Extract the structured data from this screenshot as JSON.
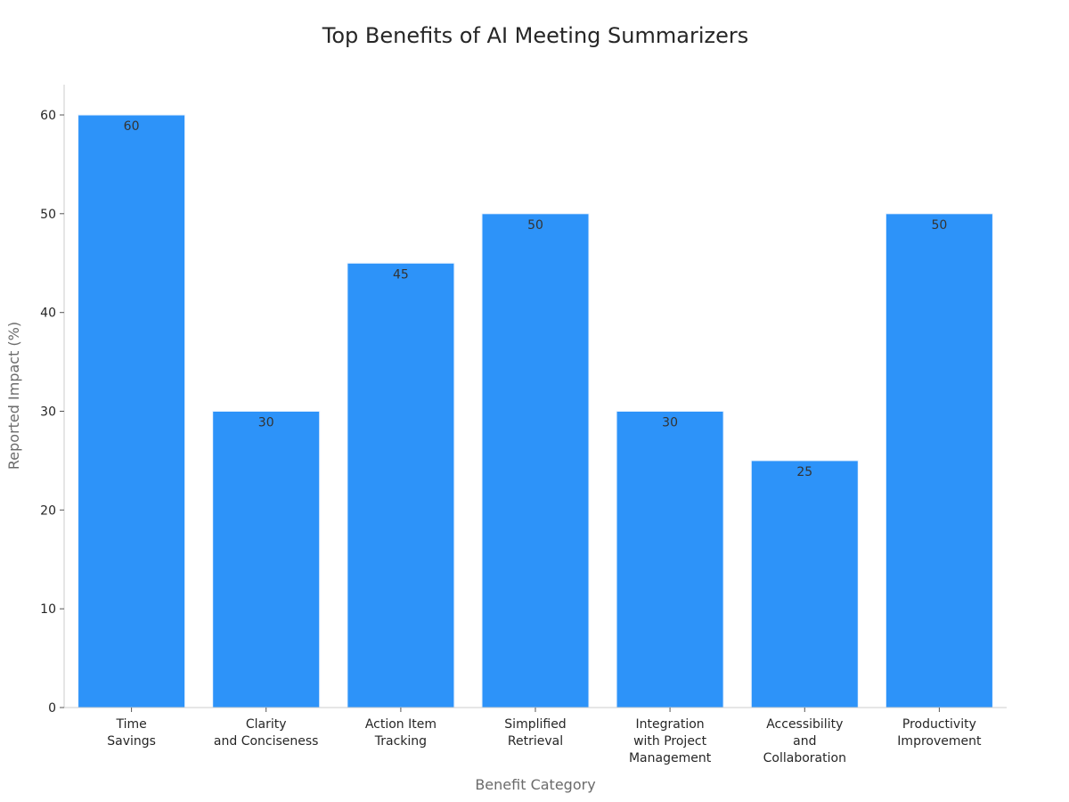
{
  "chart_data": {
    "type": "bar",
    "title": "Top Benefits of AI Meeting Summarizers",
    "xlabel": "Benefit Category",
    "ylabel": "Reported Impact (%)",
    "categories": [
      [
        "Time",
        "Savings"
      ],
      [
        "Clarity",
        "and Conciseness"
      ],
      [
        "Action Item",
        "Tracking"
      ],
      [
        "Simplified",
        "Retrieval"
      ],
      [
        "Integration",
        "with Project",
        "Management"
      ],
      [
        "Accessibility",
        "and",
        "Collaboration"
      ],
      [
        "Productivity",
        "Improvement"
      ]
    ],
    "values": [
      60,
      30,
      45,
      50,
      30,
      25,
      50
    ],
    "data_labels": [
      "60",
      "30",
      "45",
      "50",
      "30",
      "25",
      "50"
    ],
    "ylim": [
      0,
      63
    ],
    "yticks": [
      0,
      10,
      20,
      30,
      40,
      50,
      60
    ],
    "bar_color": "#2d93f9",
    "grid": false,
    "legend": "none"
  }
}
